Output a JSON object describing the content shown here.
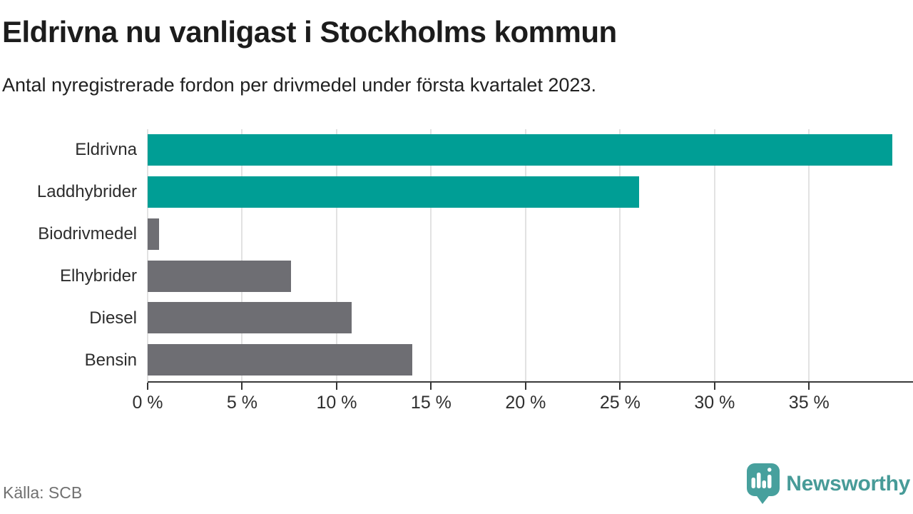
{
  "header": {
    "title": "Eldrivna nu vanligast i Stockholms kommun",
    "subtitle": "Antal nyregistrerade fordon per drivmedel under första kvartalet 2023."
  },
  "chart_data": {
    "type": "bar",
    "orientation": "horizontal",
    "title": "Eldrivna nu vanligast i Stockholms kommun",
    "subtitle": "Antal nyregistrerade fordon per drivmedel under första kvartalet 2023.",
    "categories": [
      "Eldrivna",
      "Laddhybrider",
      "Biodrivmedel",
      "Elhybrider",
      "Diesel",
      "Bensin"
    ],
    "values": [
      39.4,
      26.0,
      0.6,
      7.6,
      10.8,
      14.0
    ],
    "unit": "%",
    "xlim": [
      0,
      40.5
    ],
    "x_tick_values": [
      0,
      5,
      10,
      15,
      20,
      25,
      30,
      35
    ],
    "x_tick_labels": [
      "0 %",
      "5 %",
      "10 %",
      "15 %",
      "20 %",
      "25 %",
      "30 %",
      "35 %"
    ],
    "bar_colors": [
      "#009e95",
      "#009e95",
      "#6e6e73",
      "#6e6e73",
      "#6e6e73",
      "#6e6e73"
    ],
    "grid": true,
    "legend": false
  },
  "colors": {
    "highlight_teal": "#009e95",
    "bar_gray": "#6e6e73",
    "gridline": "#e2e2e2",
    "axis": "#3a3a3a",
    "logo_teal": "#47a09d",
    "wordmark_teal": "#479b98"
  },
  "footer": {
    "source": "Källa: SCB",
    "brand": "Newsworthy"
  }
}
